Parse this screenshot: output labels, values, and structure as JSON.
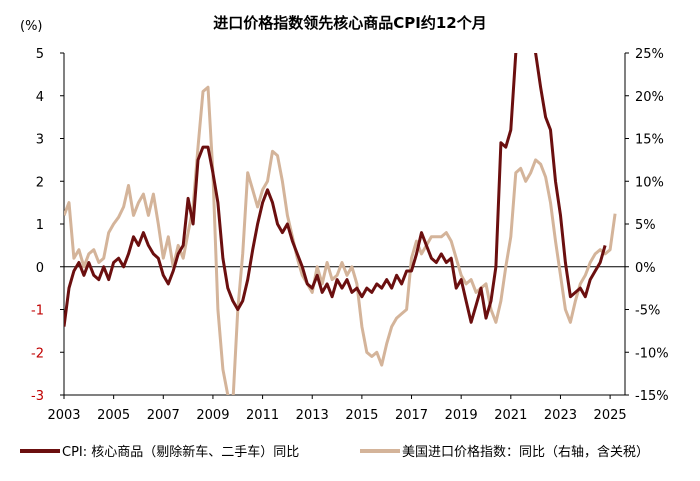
{
  "chart_data": {
    "type": "line",
    "title": "进口价格指数领先核心商品CPI约12个月",
    "y_left_unit": "(%)",
    "x_ticks": [
      "2003",
      "2005",
      "2007",
      "2009",
      "2011",
      "2013",
      "2015",
      "2017",
      "2019",
      "2021",
      "2023",
      "2025"
    ],
    "y_left_ticks": [
      {
        "value": 5,
        "label": "5"
      },
      {
        "value": 4,
        "label": "4"
      },
      {
        "value": 3,
        "label": "3"
      },
      {
        "value": 2,
        "label": "2"
      },
      {
        "value": 1,
        "label": "1"
      },
      {
        "value": 0,
        "label": "0"
      },
      {
        "value": -1,
        "label": "-1"
      },
      {
        "value": -2,
        "label": "-2"
      },
      {
        "value": -3,
        "label": "-3"
      }
    ],
    "y_right_ticks": [
      {
        "value": 25,
        "label": "25%"
      },
      {
        "value": 20,
        "label": "20%"
      },
      {
        "value": 15,
        "label": "15%"
      },
      {
        "value": 10,
        "label": "10%"
      },
      {
        "value": 5,
        "label": "5%"
      },
      {
        "value": 0,
        "label": "0%"
      },
      {
        "value": -5,
        "label": "-5%"
      },
      {
        "value": -10,
        "label": "-10%"
      },
      {
        "value": -15,
        "label": "-15%"
      }
    ],
    "y_left_range": [
      -3,
      5
    ],
    "y_right_range": [
      -15,
      25
    ],
    "x_range": [
      2003,
      2025.6
    ],
    "grid": false,
    "legend_position": "bottom",
    "series": [
      {
        "name": "CPI: 核心商品（剔除新车、二手车）同比",
        "axis": "left",
        "color": "#6b0f0f",
        "points": [
          [
            2003.0,
            -1.4
          ],
          [
            2003.2,
            -0.5
          ],
          [
            2003.4,
            -0.1
          ],
          [
            2003.6,
            0.1
          ],
          [
            2003.8,
            -0.2
          ],
          [
            2004.0,
            0.1
          ],
          [
            2004.2,
            -0.2
          ],
          [
            2004.4,
            -0.3
          ],
          [
            2004.6,
            0.0
          ],
          [
            2004.8,
            -0.3
          ],
          [
            2005.0,
            0.1
          ],
          [
            2005.2,
            0.2
          ],
          [
            2005.4,
            0.0
          ],
          [
            2005.6,
            0.3
          ],
          [
            2005.8,
            0.7
          ],
          [
            2006.0,
            0.5
          ],
          [
            2006.2,
            0.8
          ],
          [
            2006.4,
            0.5
          ],
          [
            2006.6,
            0.3
          ],
          [
            2006.8,
            0.2
          ],
          [
            2007.0,
            -0.2
          ],
          [
            2007.2,
            -0.4
          ],
          [
            2007.4,
            -0.1
          ],
          [
            2007.6,
            0.3
          ],
          [
            2007.8,
            0.5
          ],
          [
            2008.0,
            1.6
          ],
          [
            2008.2,
            1.0
          ],
          [
            2008.4,
            2.5
          ],
          [
            2008.6,
            2.8
          ],
          [
            2008.8,
            2.8
          ],
          [
            2009.0,
            2.2
          ],
          [
            2009.2,
            1.5
          ],
          [
            2009.4,
            0.2
          ],
          [
            2009.6,
            -0.5
          ],
          [
            2009.8,
            -0.8
          ],
          [
            2010.0,
            -1.0
          ],
          [
            2010.2,
            -0.8
          ],
          [
            2010.4,
            -0.3
          ],
          [
            2010.6,
            0.4
          ],
          [
            2010.8,
            1.0
          ],
          [
            2011.0,
            1.5
          ],
          [
            2011.2,
            1.8
          ],
          [
            2011.4,
            1.5
          ],
          [
            2011.6,
            1.0
          ],
          [
            2011.8,
            0.8
          ],
          [
            2012.0,
            1.0
          ],
          [
            2012.2,
            0.6
          ],
          [
            2012.4,
            0.3
          ],
          [
            2012.6,
            0.0
          ],
          [
            2012.8,
            -0.4
          ],
          [
            2013.0,
            -0.5
          ],
          [
            2013.2,
            -0.2
          ],
          [
            2013.4,
            -0.6
          ],
          [
            2013.6,
            -0.4
          ],
          [
            2013.8,
            -0.7
          ],
          [
            2014.0,
            -0.3
          ],
          [
            2014.2,
            -0.5
          ],
          [
            2014.4,
            -0.3
          ],
          [
            2014.6,
            -0.6
          ],
          [
            2014.8,
            -0.5
          ],
          [
            2015.0,
            -0.7
          ],
          [
            2015.2,
            -0.5
          ],
          [
            2015.4,
            -0.6
          ],
          [
            2015.6,
            -0.4
          ],
          [
            2015.8,
            -0.5
          ],
          [
            2016.0,
            -0.3
          ],
          [
            2016.2,
            -0.5
          ],
          [
            2016.4,
            -0.2
          ],
          [
            2016.6,
            -0.4
          ],
          [
            2016.8,
            -0.1
          ],
          [
            2017.0,
            -0.1
          ],
          [
            2017.2,
            0.3
          ],
          [
            2017.4,
            0.8
          ],
          [
            2017.6,
            0.5
          ],
          [
            2017.8,
            0.2
          ],
          [
            2018.0,
            0.1
          ],
          [
            2018.2,
            0.3
          ],
          [
            2018.4,
            0.1
          ],
          [
            2018.6,
            0.2
          ],
          [
            2018.8,
            -0.5
          ],
          [
            2019.0,
            -0.3
          ],
          [
            2019.2,
            -0.8
          ],
          [
            2019.4,
            -1.3
          ],
          [
            2019.6,
            -0.9
          ],
          [
            2019.8,
            -0.5
          ],
          [
            2020.0,
            -1.2
          ],
          [
            2020.2,
            -0.8
          ],
          [
            2020.4,
            0.0
          ],
          [
            2020.6,
            2.9
          ],
          [
            2020.8,
            2.8
          ],
          [
            2021.0,
            3.2
          ],
          [
            2021.2,
            5.0
          ],
          [
            2021.4,
            5.2
          ],
          [
            2021.6,
            5.3
          ],
          [
            2021.8,
            5.3
          ],
          [
            2022.0,
            5.0
          ],
          [
            2022.2,
            4.2
          ],
          [
            2022.4,
            3.5
          ],
          [
            2022.6,
            3.2
          ],
          [
            2022.8,
            2.0
          ],
          [
            2023.0,
            1.2
          ],
          [
            2023.2,
            0.1
          ],
          [
            2023.4,
            -0.7
          ],
          [
            2023.6,
            -0.6
          ],
          [
            2023.8,
            -0.5
          ],
          [
            2024.0,
            -0.7
          ],
          [
            2024.2,
            -0.3
          ],
          [
            2024.4,
            -0.1
          ],
          [
            2024.6,
            0.1
          ],
          [
            2024.8,
            0.5
          ]
        ]
      },
      {
        "name": "美国进口价格指数：同比（右轴，含关税）",
        "axis": "right",
        "color": "#d4b49a",
        "points": [
          [
            2003.0,
            6.0
          ],
          [
            2003.2,
            7.5
          ],
          [
            2003.4,
            1.0
          ],
          [
            2003.6,
            2.0
          ],
          [
            2003.8,
            0.0
          ],
          [
            2004.0,
            1.5
          ],
          [
            2004.2,
            2.0
          ],
          [
            2004.4,
            0.5
          ],
          [
            2004.6,
            1.0
          ],
          [
            2004.8,
            4.0
          ],
          [
            2005.0,
            5.0
          ],
          [
            2005.2,
            5.8
          ],
          [
            2005.4,
            7.0
          ],
          [
            2005.6,
            9.5
          ],
          [
            2005.8,
            6.0
          ],
          [
            2006.0,
            7.5
          ],
          [
            2006.2,
            8.5
          ],
          [
            2006.4,
            6.0
          ],
          [
            2006.6,
            8.5
          ],
          [
            2006.8,
            5.0
          ],
          [
            2007.0,
            1.0
          ],
          [
            2007.2,
            3.5
          ],
          [
            2007.4,
            0.0
          ],
          [
            2007.6,
            2.5
          ],
          [
            2007.8,
            1.0
          ],
          [
            2008.0,
            4.0
          ],
          [
            2008.2,
            7.0
          ],
          [
            2008.4,
            14.0
          ],
          [
            2008.6,
            20.5
          ],
          [
            2008.8,
            21.0
          ],
          [
            2009.0,
            11.0
          ],
          [
            2009.2,
            -5.0
          ],
          [
            2009.4,
            -12.0
          ],
          [
            2009.6,
            -15.0
          ],
          [
            2009.8,
            -16.0
          ],
          [
            2010.0,
            -5.0
          ],
          [
            2010.2,
            1.5
          ],
          [
            2010.4,
            11.0
          ],
          [
            2010.6,
            9.0
          ],
          [
            2010.8,
            7.0
          ],
          [
            2011.0,
            9.0
          ],
          [
            2011.2,
            10.0
          ],
          [
            2011.4,
            13.5
          ],
          [
            2011.6,
            13.0
          ],
          [
            2011.8,
            10.0
          ],
          [
            2012.0,
            6.0
          ],
          [
            2012.2,
            3.5
          ],
          [
            2012.4,
            1.0
          ],
          [
            2012.6,
            -1.0
          ],
          [
            2012.8,
            -2.0
          ],
          [
            2013.0,
            -3.0
          ],
          [
            2013.2,
            0.0
          ],
          [
            2013.4,
            -2.0
          ],
          [
            2013.6,
            0.5
          ],
          [
            2013.8,
            -1.5
          ],
          [
            2014.0,
            -1.0
          ],
          [
            2014.2,
            0.5
          ],
          [
            2014.4,
            -1.0
          ],
          [
            2014.6,
            0.0
          ],
          [
            2014.8,
            -2.0
          ],
          [
            2015.0,
            -7.0
          ],
          [
            2015.2,
            -10.0
          ],
          [
            2015.4,
            -10.5
          ],
          [
            2015.6,
            -10.0
          ],
          [
            2015.8,
            -11.5
          ],
          [
            2016.0,
            -9.0
          ],
          [
            2016.2,
            -7.0
          ],
          [
            2016.4,
            -6.0
          ],
          [
            2016.6,
            -5.5
          ],
          [
            2016.8,
            -5.0
          ],
          [
            2017.0,
            1.0
          ],
          [
            2017.2,
            3.0
          ],
          [
            2017.4,
            1.5
          ],
          [
            2017.6,
            2.5
          ],
          [
            2017.8,
            3.5
          ],
          [
            2018.0,
            3.5
          ],
          [
            2018.2,
            3.5
          ],
          [
            2018.4,
            4.0
          ],
          [
            2018.6,
            3.0
          ],
          [
            2018.8,
            1.0
          ],
          [
            2019.0,
            -1.0
          ],
          [
            2019.2,
            -2.0
          ],
          [
            2019.4,
            -1.5
          ],
          [
            2019.6,
            -3.0
          ],
          [
            2019.8,
            -2.5
          ],
          [
            2020.0,
            -2.0
          ],
          [
            2020.2,
            -5.0
          ],
          [
            2020.4,
            -6.5
          ],
          [
            2020.6,
            -4.0
          ],
          [
            2020.8,
            0.0
          ],
          [
            2021.0,
            3.5
          ],
          [
            2021.2,
            11.0
          ],
          [
            2021.4,
            11.5
          ],
          [
            2021.6,
            10.0
          ],
          [
            2021.8,
            11.0
          ],
          [
            2022.0,
            12.5
          ],
          [
            2022.2,
            12.0
          ],
          [
            2022.4,
            10.5
          ],
          [
            2022.6,
            7.5
          ],
          [
            2022.8,
            3.0
          ],
          [
            2023.0,
            -1.0
          ],
          [
            2023.2,
            -5.0
          ],
          [
            2023.4,
            -6.5
          ],
          [
            2023.6,
            -4.0
          ],
          [
            2023.8,
            -2.0
          ],
          [
            2024.0,
            -1.0
          ],
          [
            2024.2,
            0.5
          ],
          [
            2024.4,
            1.5
          ],
          [
            2024.6,
            2.0
          ],
          [
            2024.8,
            1.5
          ],
          [
            2025.0,
            2.0
          ],
          [
            2025.2,
            6.2
          ]
        ]
      }
    ]
  }
}
